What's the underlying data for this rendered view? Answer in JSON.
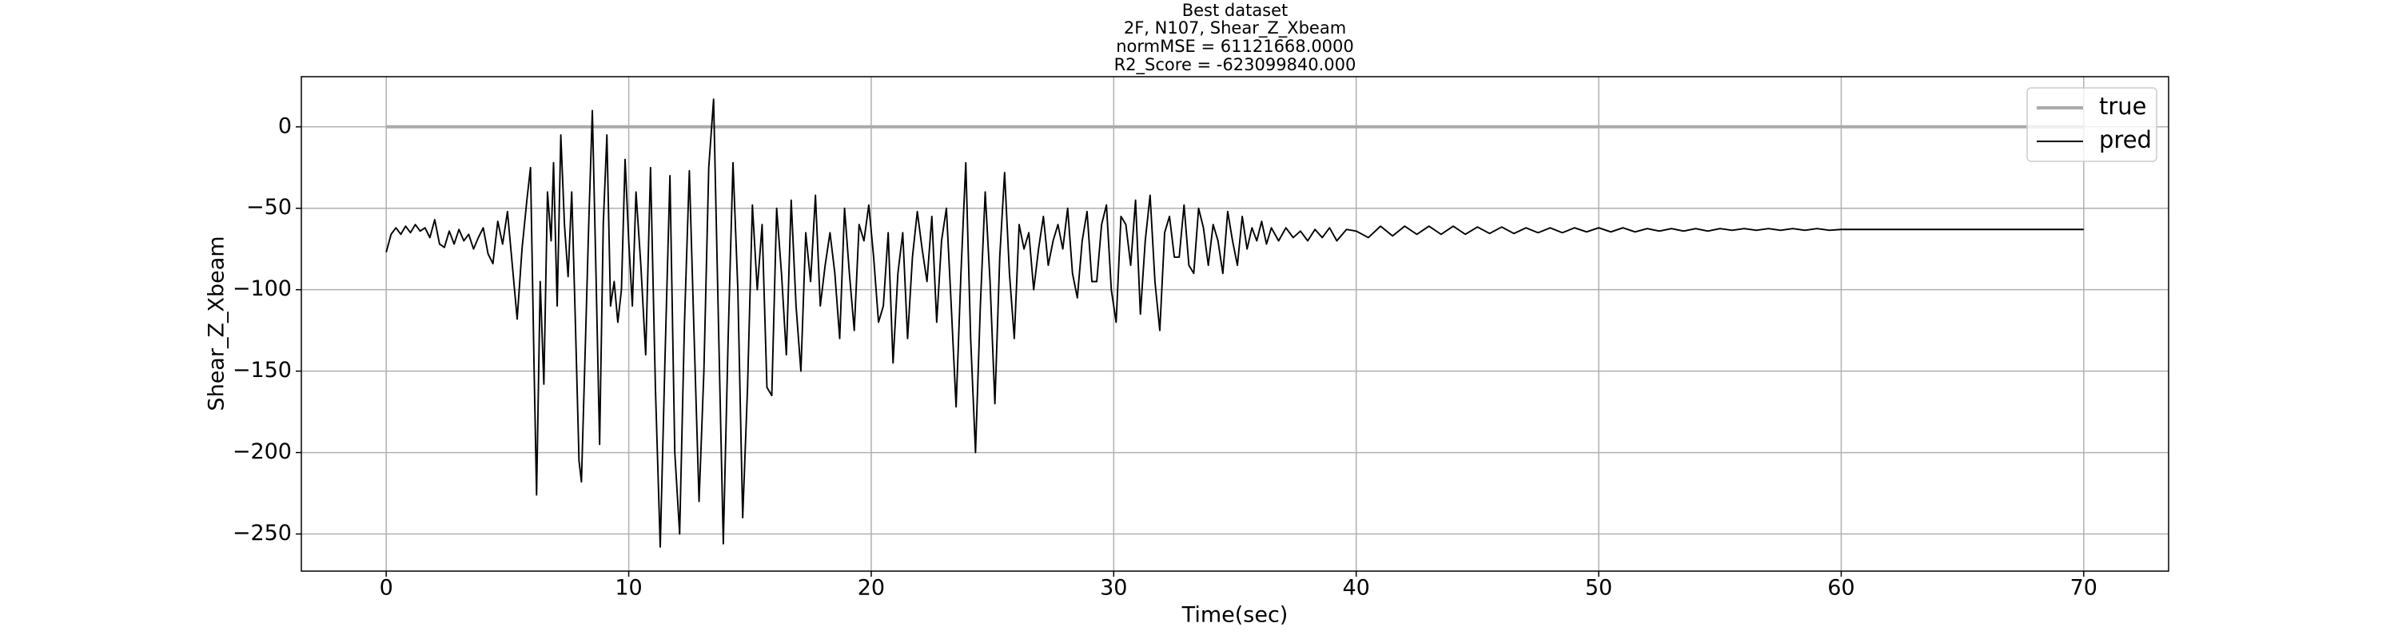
{
  "chart_data": {
    "type": "line",
    "title": [
      "Best dataset",
      "2F, N107, Shear_Z_Xbeam",
      "normMSE = 61121668.0000",
      "R2_Score = -623099840.000"
    ],
    "x_label": "Time(sec)",
    "y_label": "Shear_Z_Xbeam",
    "xlim": [
      -3.5,
      73.5
    ],
    "ylim": [
      -272.8,
      30.8
    ],
    "xticks": [
      0,
      10,
      20,
      30,
      40,
      50,
      60,
      70
    ],
    "yticks": [
      {
        "value": -250,
        "label": "−250"
      },
      {
        "value": -200,
        "label": "−200"
      },
      {
        "value": -150,
        "label": "−150"
      },
      {
        "value": -100,
        "label": "−100"
      },
      {
        "value": -50,
        "label": "−50"
      },
      0
    ],
    "grid": true,
    "legend": "upper right",
    "series": [
      {
        "name": "true",
        "color": "#aaaaaa",
        "x": [
          0,
          70
        ],
        "values": [
          0,
          0
        ]
      },
      {
        "name": "pred",
        "color": "#000000",
        "x": [
          0,
          0.2,
          0.4,
          0.6,
          0.8,
          1.0,
          1.2,
          1.4,
          1.6,
          1.8,
          2.0,
          2.2,
          2.4,
          2.6,
          2.8,
          3.0,
          3.2,
          3.4,
          3.6,
          3.8,
          4.0,
          4.2,
          4.4,
          4.6,
          4.8,
          5.0,
          5.2,
          5.4,
          5.6,
          5.8,
          5.95,
          6.1,
          6.2,
          6.35,
          6.5,
          6.65,
          6.8,
          6.9,
          7.05,
          7.2,
          7.35,
          7.5,
          7.65,
          7.8,
          7.95,
          8.05,
          8.2,
          8.35,
          8.5,
          8.65,
          8.8,
          8.95,
          9.1,
          9.25,
          9.4,
          9.55,
          9.7,
          9.85,
          10.0,
          10.15,
          10.3,
          10.5,
          10.7,
          10.9,
          11.1,
          11.3,
          11.5,
          11.7,
          11.9,
          12.1,
          12.3,
          12.5,
          12.7,
          12.9,
          13.1,
          13.3,
          13.5,
          13.7,
          13.9,
          14.1,
          14.3,
          14.5,
          14.7,
          14.9,
          15.1,
          15.3,
          15.5,
          15.7,
          15.9,
          16.1,
          16.3,
          16.5,
          16.7,
          16.9,
          17.1,
          17.3,
          17.5,
          17.7,
          17.9,
          18.1,
          18.3,
          18.5,
          18.7,
          18.9,
          19.1,
          19.3,
          19.5,
          19.7,
          19.9,
          20.1,
          20.3,
          20.5,
          20.7,
          20.9,
          21.1,
          21.3,
          21.5,
          21.7,
          21.9,
          22.1,
          22.3,
          22.5,
          22.7,
          22.9,
          23.1,
          23.3,
          23.5,
          23.7,
          23.9,
          24.1,
          24.3,
          24.5,
          24.7,
          24.9,
          25.1,
          25.3,
          25.5,
          25.7,
          25.9,
          26.1,
          26.3,
          26.5,
          26.7,
          26.9,
          27.1,
          27.3,
          27.5,
          27.7,
          27.9,
          28.1,
          28.3,
          28.5,
          28.7,
          28.9,
          29.1,
          29.3,
          29.5,
          29.7,
          29.9,
          30.1,
          30.3,
          30.5,
          30.7,
          30.9,
          31.1,
          31.3,
          31.5,
          31.7,
          31.9,
          32.1,
          32.3,
          32.5,
          32.7,
          32.9,
          33.1,
          33.3,
          33.5,
          33.7,
          33.9,
          34.1,
          34.3,
          34.5,
          34.7,
          34.9,
          35.1,
          35.3,
          35.5,
          35.7,
          35.9,
          36.1,
          36.3,
          36.5,
          36.8,
          37.1,
          37.4,
          37.7,
          38.0,
          38.3,
          38.6,
          38.9,
          39.2,
          39.6,
          40,
          40.5,
          41,
          41.5,
          42,
          42.5,
          43,
          43.5,
          44,
          44.5,
          45,
          45.5,
          46,
          46.5,
          47,
          47.5,
          48,
          48.5,
          49,
          49.5,
          50,
          50.5,
          51,
          51.5,
          52,
          52.5,
          53,
          53.5,
          54,
          54.5,
          55,
          55.5,
          56,
          56.5,
          57,
          57.5,
          58,
          58.5,
          59,
          59.5,
          60,
          62,
          64,
          66,
          68,
          70
        ],
        "values": [
          -77,
          -66,
          -62,
          -66,
          -61,
          -65,
          -60,
          -64,
          -62,
          -68,
          -57,
          -72,
          -74,
          -64,
          -72,
          -63,
          -70,
          -66,
          -75,
          -68,
          -62,
          -78,
          -84,
          -58,
          -72,
          -52,
          -85,
          -118,
          -75,
          -45,
          -25,
          -150,
          -226,
          -95,
          -158,
          -40,
          -70,
          -22,
          -110,
          -5,
          -60,
          -92,
          -40,
          -120,
          -205,
          -218,
          -140,
          -60,
          10,
          -90,
          -195,
          -60,
          -5,
          -110,
          -95,
          -120,
          -100,
          -20,
          -70,
          -110,
          -40,
          -85,
          -140,
          -25,
          -160,
          -258,
          -140,
          -30,
          -200,
          -250,
          -120,
          -27,
          -130,
          -230,
          -150,
          -25,
          17,
          -120,
          -256,
          -130,
          -22,
          -100,
          -240,
          -160,
          -48,
          -100,
          -60,
          -160,
          -165,
          -50,
          -90,
          -140,
          -45,
          -110,
          -150,
          -65,
          -95,
          -42,
          -110,
          -85,
          -65,
          -90,
          -130,
          -50,
          -90,
          -125,
          -60,
          -70,
          -48,
          -80,
          -120,
          -110,
          -65,
          -145,
          -90,
          -65,
          -130,
          -80,
          -52,
          -75,
          -95,
          -55,
          -120,
          -70,
          -50,
          -110,
          -172,
          -90,
          -22,
          -130,
          -200,
          -110,
          -40,
          -95,
          -170,
          -80,
          -28,
          -90,
          -130,
          -60,
          -75,
          -65,
          -100,
          -75,
          -55,
          -85,
          -70,
          -60,
          -75,
          -50,
          -90,
          -105,
          -70,
          -52,
          -95,
          -95,
          -60,
          -48,
          -100,
          -120,
          -55,
          -60,
          -85,
          -45,
          -115,
          -70,
          -42,
          -95,
          -125,
          -65,
          -55,
          -80,
          -80,
          -48,
          -85,
          -90,
          -50,
          -62,
          -85,
          -60,
          -70,
          -90,
          -52,
          -70,
          -85,
          -55,
          -75,
          -62,
          -70,
          -58,
          -72,
          -62,
          -70,
          -62,
          -68,
          -64,
          -70,
          -63,
          -68,
          -62,
          -70,
          -63,
          -64,
          -68,
          -61,
          -67,
          -61,
          -66,
          -61,
          -66,
          -61,
          -66,
          -61.5,
          -65.5,
          -61.5,
          -65.5,
          -62,
          -65,
          -62,
          -65,
          -62,
          -64.5,
          -62,
          -64.5,
          -62,
          -64.5,
          -62.5,
          -64,
          -62.5,
          -64,
          -62.5,
          -64,
          -62.5,
          -63.5,
          -62.5,
          -63.5,
          -62.5,
          -63.5,
          -62.5,
          -63.5,
          -62.5,
          -63.5,
          -63,
          -63,
          -63,
          -63,
          -63,
          -63
        ]
      }
    ]
  }
}
